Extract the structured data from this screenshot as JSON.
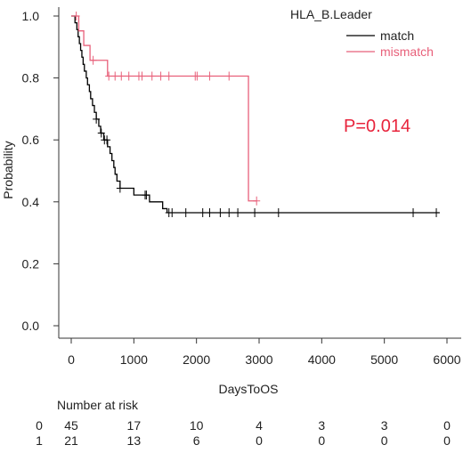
{
  "chart_data": {
    "type": "line",
    "subtype": "kaplan-meier",
    "xlabel": "DaysToOS",
    "ylabel": "Probability",
    "xlim": [
      0,
      6000
    ],
    "ylim": [
      0,
      1
    ],
    "x_ticks": [
      0,
      1000,
      2000,
      3000,
      4000,
      5000,
      6000
    ],
    "y_ticks": [
      0.0,
      0.2,
      0.4,
      0.6,
      0.8,
      1.0
    ],
    "x_tick_labels": [
      "0",
      "1000",
      "2000",
      "3000",
      "4000",
      "5000",
      "6000"
    ],
    "y_tick_labels": [
      "0.0",
      "0.2",
      "0.4",
      "0.6",
      "0.8",
      "1.0"
    ],
    "legend_title": "HLA_B.Leader",
    "legend_position": "top-right",
    "annotation": "P=0.014",
    "series": [
      {
        "name": "match",
        "color": "#000000",
        "steps": [
          [
            0,
            1.0
          ],
          [
            60,
            0.978
          ],
          [
            90,
            0.956
          ],
          [
            110,
            0.933
          ],
          [
            130,
            0.911
          ],
          [
            150,
            0.889
          ],
          [
            170,
            0.867
          ],
          [
            190,
            0.844
          ],
          [
            210,
            0.822
          ],
          [
            240,
            0.8
          ],
          [
            260,
            0.778
          ],
          [
            290,
            0.756
          ],
          [
            310,
            0.733
          ],
          [
            340,
            0.711
          ],
          [
            370,
            0.689
          ],
          [
            400,
            0.667
          ],
          [
            440,
            0.644
          ],
          [
            470,
            0.622
          ],
          [
            520,
            0.6
          ],
          [
            580,
            0.578
          ],
          [
            620,
            0.556
          ],
          [
            650,
            0.533
          ],
          [
            680,
            0.511
          ],
          [
            700,
            0.489
          ],
          [
            730,
            0.467
          ],
          [
            780,
            0.444
          ],
          [
            1000,
            0.422
          ],
          [
            1250,
            0.4
          ],
          [
            1460,
            0.378
          ],
          [
            1530,
            0.365
          ]
        ],
        "end_x": 5880,
        "censor_times": [
          400,
          480,
          530,
          570,
          780,
          1180,
          1200,
          1560,
          1610,
          1830,
          2100,
          2210,
          2380,
          2520,
          2660,
          2930,
          3310,
          5460,
          5830
        ]
      },
      {
        "name": "mismatch",
        "color": "#e8607a",
        "steps": [
          [
            0,
            1.0
          ],
          [
            120,
            0.952
          ],
          [
            200,
            0.905
          ],
          [
            300,
            0.857
          ],
          [
            580,
            0.806
          ],
          [
            2830,
            0.403
          ]
        ],
        "end_x": 2960,
        "censor_times": [
          80,
          350,
          600,
          700,
          800,
          920,
          1080,
          1130,
          1290,
          1430,
          1560,
          1980,
          2010,
          2210,
          2520,
          2960
        ]
      }
    ]
  },
  "risk_table": {
    "title": "Number at risk",
    "times": [
      0,
      1000,
      2000,
      3000,
      4000,
      5000,
      6000
    ],
    "rows": [
      {
        "label": "0",
        "counts": [
          "45",
          "17",
          "10",
          "4",
          "3",
          "3",
          "0"
        ]
      },
      {
        "label": "1",
        "counts": [
          "21",
          "13",
          "6",
          "0",
          "0",
          "0",
          "0"
        ]
      }
    ]
  },
  "colors": {
    "match": "#000000",
    "mismatch": "#e8607a",
    "pvalue": "#e8243c",
    "axis": "#333333"
  }
}
